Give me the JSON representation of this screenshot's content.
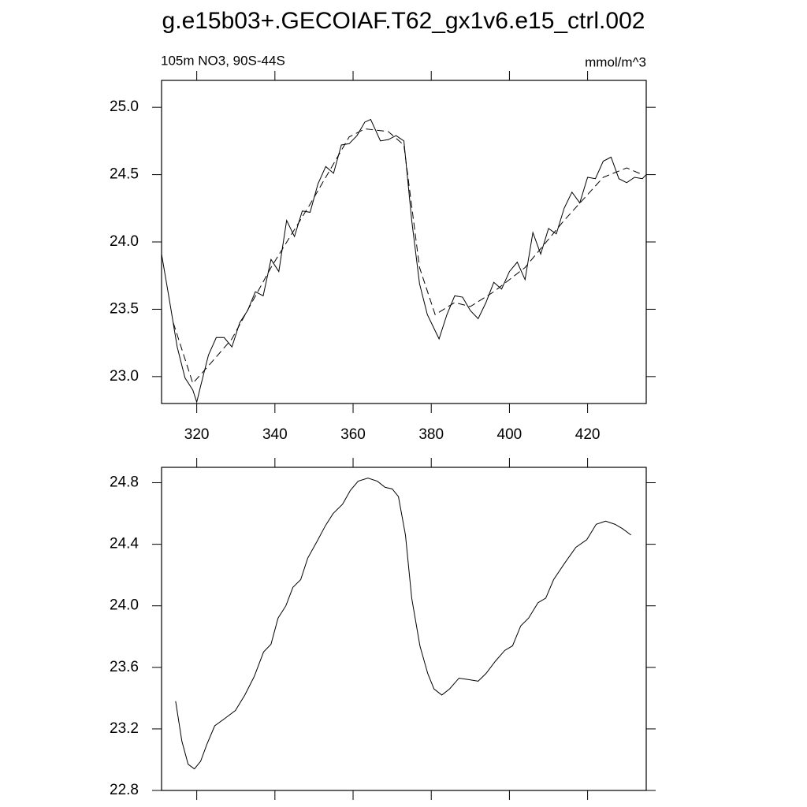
{
  "chart_data": [
    {
      "type": "line",
      "title": "g.e15b03+.GECOIAF.T62_gx1v6.e15_ctrl.002",
      "subtitle": "105m NO3, 90S-44S",
      "units": "mmol/m^3",
      "xlim": [
        311,
        435
      ],
      "xticks": [
        320,
        340,
        360,
        380,
        400,
        420
      ],
      "ylim": [
        22.8,
        25.2
      ],
      "yticks": [
        {
          "value": 23,
          "label": "23.0"
        },
        23.5,
        {
          "value": 24,
          "label": "24.0"
        },
        24.5,
        {
          "value": 25,
          "label": "25.0"
        }
      ],
      "series": [
        {
          "color": "#000000",
          "dashed": false,
          "x": [
            311,
            313,
            315,
            317,
            319,
            320,
            321,
            323,
            325,
            327,
            329,
            331,
            333,
            335,
            337,
            339,
            341,
            343,
            345,
            347,
            349,
            351,
            353,
            355,
            357,
            359,
            361,
            363,
            364.5,
            367,
            369,
            371,
            373,
            375,
            377,
            379,
            381,
            382,
            384,
            386,
            388,
            390,
            392,
            394,
            396,
            398,
            400,
            402,
            404,
            406,
            408,
            410,
            412,
            414,
            416,
            418,
            420,
            422,
            424,
            426,
            428,
            430,
            432,
            434,
            435
          ],
          "values": [
            23.91,
            23.57,
            23.22,
            22.99,
            22.9,
            22.81,
            22.93,
            23.16,
            23.29,
            23.29,
            23.22,
            23.4,
            23.49,
            23.63,
            23.6,
            23.87,
            23.78,
            24.16,
            24.04,
            24.23,
            24.22,
            24.43,
            24.56,
            24.51,
            24.72,
            24.73,
            24.79,
            24.89,
            24.91,
            24.75,
            24.76,
            24.79,
            24.75,
            24.16,
            23.69,
            23.46,
            23.34,
            23.28,
            23.46,
            23.6,
            23.59,
            23.49,
            23.43,
            23.55,
            23.7,
            23.65,
            23.78,
            23.85,
            23.72,
            24.07,
            23.91,
            24.1,
            24.06,
            24.25,
            24.37,
            24.29,
            24.48,
            24.47,
            24.6,
            24.63,
            24.47,
            24.44,
            24.48,
            24.47,
            24.5
          ]
        },
        {
          "color": "#000000",
          "dashed": true,
          "x": [
            314,
            319,
            323,
            329,
            339,
            349,
            359,
            363,
            369,
            373,
            377,
            381,
            386,
            390,
            396,
            404,
            414,
            424,
            430,
            434
          ],
          "values": [
            23.4,
            22.95,
            23.08,
            23.28,
            23.81,
            24.28,
            24.78,
            24.84,
            24.82,
            24.72,
            23.81,
            23.46,
            23.55,
            23.52,
            23.63,
            23.81,
            24.16,
            24.48,
            24.55,
            24.5
          ]
        }
      ]
    },
    {
      "type": "line",
      "xlim": [
        311,
        435
      ],
      "xticks": [
        320,
        340,
        360,
        380,
        400,
        420
      ],
      "ylim": [
        22.8,
        24.9
      ],
      "yticks": [
        22.8,
        23.2,
        23.6,
        {
          "value": 24,
          "label": "24.0"
        },
        24.4,
        24.8
      ],
      "series": [
        {
          "color": "#000000",
          "dashed": false,
          "x": [
            314.6,
            316.2,
            317.8,
            319.4,
            321,
            322.6,
            324.6,
            327.3,
            329.9,
            332.3,
            334.7,
            337.1,
            339,
            340.8,
            342.8,
            344.6,
            346.6,
            348.4,
            350.8,
            352.9,
            354.9,
            357.3,
            359.3,
            361.3,
            363.8,
            366.2,
            368.2,
            370,
            371.6,
            373.4,
            375,
            377.1,
            379.1,
            380.7,
            382.7,
            384.7,
            387.1,
            389.6,
            392,
            394,
            396.4,
            398.8,
            400.8,
            402.9,
            404.9,
            407.3,
            409.3,
            411.3,
            414.2,
            417,
            419.8,
            422.2,
            424.6,
            427,
            429,
            431.1
          ],
          "values": [
            23.38,
            23.12,
            22.97,
            22.94,
            22.99,
            23.1,
            23.22,
            23.27,
            23.32,
            23.42,
            23.54,
            23.7,
            23.75,
            23.92,
            24.0,
            24.12,
            24.17,
            24.31,
            24.42,
            24.52,
            24.6,
            24.66,
            24.75,
            24.81,
            24.83,
            24.81,
            24.77,
            24.76,
            24.71,
            24.46,
            24.05,
            23.74,
            23.56,
            23.46,
            23.42,
            23.46,
            23.53,
            23.52,
            23.51,
            23.56,
            23.64,
            23.71,
            23.74,
            23.87,
            23.92,
            24.02,
            24.05,
            24.17,
            24.28,
            24.38,
            24.43,
            24.53,
            24.55,
            24.53,
            24.5,
            24.46
          ]
        }
      ]
    }
  ]
}
